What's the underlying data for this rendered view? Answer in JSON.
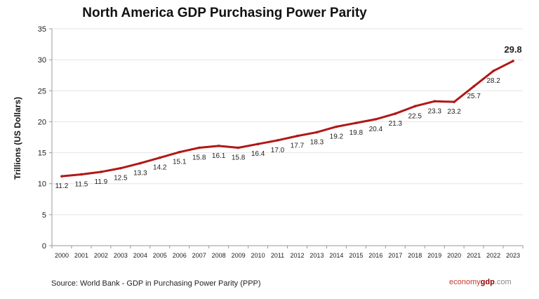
{
  "chart_data": {
    "type": "line",
    "title": "North America GDP Purchasing Power Parity",
    "xlabel": "",
    "ylabel": "Trillions (US Dollars)",
    "ylim": [
      0,
      35
    ],
    "yticks": [
      0,
      5,
      10,
      15,
      20,
      25,
      30,
      35
    ],
    "grid": true,
    "categories": [
      "2000",
      "2001",
      "2002",
      "2003",
      "2004",
      "2005",
      "2006",
      "2007",
      "2008",
      "2009",
      "2010",
      "2011",
      "2012",
      "2013",
      "2014",
      "2015",
      "2016",
      "2017",
      "2018",
      "2019",
      "2020",
      "2021",
      "2022",
      "2023"
    ],
    "values": [
      11.2,
      11.5,
      11.9,
      12.5,
      13.3,
      14.2,
      15.1,
      15.8,
      16.1,
      15.8,
      16.4,
      17.0,
      17.7,
      18.3,
      19.2,
      19.8,
      20.4,
      21.3,
      22.5,
      23.3,
      23.2,
      25.7,
      28.2,
      29.8
    ],
    "labels": [
      "11.2",
      "11.5",
      "11.9",
      "12.5",
      "13.3",
      "14.2",
      "15.1",
      "15.8",
      "16.1",
      "15.8",
      "16.4",
      "17.0",
      "17.7",
      "18.3",
      "19.2",
      "19.8",
      "20.4",
      "21.3",
      "22.5",
      "23.3",
      "23.2",
      "25.7",
      "28.2",
      "29.8"
    ],
    "line_color": "#b01818"
  },
  "footer": {
    "source": "Source:  World Bank -  GDP  in Purchasing Power Parity (PPP)",
    "logo_part1": "economy",
    "logo_part2": "gdp",
    "logo_part3": ".com"
  }
}
